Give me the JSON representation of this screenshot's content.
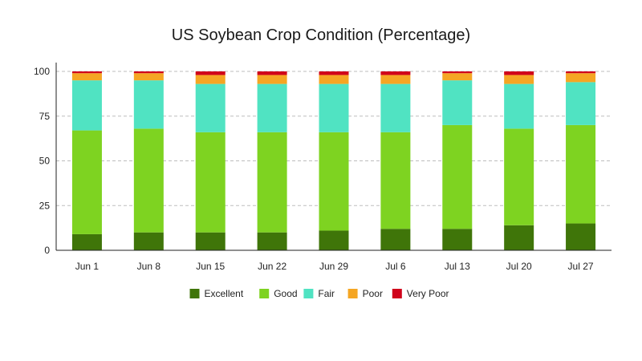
{
  "chart_data": {
    "type": "bar",
    "stacked": true,
    "title": "US Soybean Crop Condition (Percentage)",
    "xlabel": "",
    "ylabel": "",
    "ylim": [
      0,
      100
    ],
    "yticks": [
      0,
      25,
      50,
      75,
      100
    ],
    "grid": "horizontal-dashed",
    "legend_position": "bottom",
    "categories": [
      "Jun 1",
      "Jun 8",
      "Jun 15",
      "Jun 22",
      "Jun 29",
      "Jul 6",
      "Jul 13",
      "Jul 20",
      "Jul 27"
    ],
    "series": [
      {
        "name": "Excellent",
        "color": "#3f7509",
        "values": [
          9,
          10,
          10,
          10,
          11,
          12,
          12,
          14,
          15
        ]
      },
      {
        "name": "Good",
        "color": "#7ed321",
        "values": [
          58,
          58,
          56,
          56,
          55,
          54,
          58,
          54,
          55
        ]
      },
      {
        "name": "Fair",
        "color": "#50e3c2",
        "values": [
          28,
          27,
          27,
          27,
          27,
          27,
          25,
          25,
          24
        ]
      },
      {
        "name": "Poor",
        "color": "#f5a623",
        "values": [
          4,
          4,
          5,
          5,
          5,
          5,
          4,
          5,
          5
        ]
      },
      {
        "name": "Very Poor",
        "color": "#d0021b",
        "values": [
          1,
          1,
          2,
          2,
          2,
          2,
          1,
          2,
          1
        ]
      }
    ]
  }
}
